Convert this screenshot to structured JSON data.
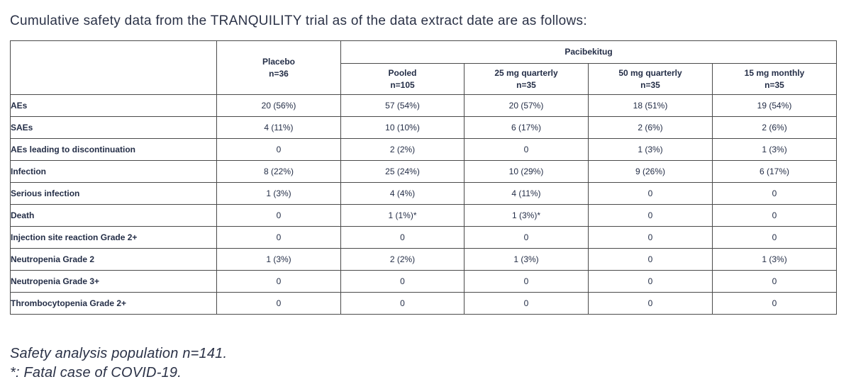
{
  "title": "Cumulative safety data from the TRANQUILITY trial as of the data extract date are as follows:",
  "table": {
    "group_header": "Pacibekitug",
    "columns": [
      {
        "label": "Placebo",
        "n": "n=36"
      },
      {
        "label": "Pooled",
        "n": "n=105"
      },
      {
        "label": "25 mg quarterly",
        "n": "n=35"
      },
      {
        "label": "50 mg quarterly",
        "n": "n=35"
      },
      {
        "label": "15 mg monthly",
        "n": "n=35"
      }
    ],
    "rows": [
      {
        "label": "AEs",
        "values": [
          "20 (56%)",
          "57 (54%)",
          "20 (57%)",
          "18 (51%)",
          "19 (54%)"
        ]
      },
      {
        "label": "SAEs",
        "values": [
          "4 (11%)",
          "10 (10%)",
          "6 (17%)",
          "2 (6%)",
          "2 (6%)"
        ]
      },
      {
        "label": "AEs leading to discontinuation",
        "values": [
          "0",
          "2 (2%)",
          "0",
          "1 (3%)",
          "1 (3%)"
        ]
      },
      {
        "label": "Infection",
        "values": [
          "8 (22%)",
          "25 (24%)",
          "10 (29%)",
          "9 (26%)",
          "6 (17%)"
        ]
      },
      {
        "label": "Serious infection",
        "values": [
          "1 (3%)",
          "4 (4%)",
          "4 (11%)",
          "0",
          "0"
        ]
      },
      {
        "label": "Death",
        "values": [
          "0",
          "1 (1%)*",
          "1 (3%)*",
          "0",
          "0"
        ]
      },
      {
        "label": "Injection site reaction Grade 2+",
        "values": [
          "0",
          "0",
          "0",
          "0",
          "0"
        ]
      },
      {
        "label": "Neutropenia Grade 2",
        "values": [
          "1 (3%)",
          "2 (2%)",
          "1 (3%)",
          "0",
          "1 (3%)"
        ]
      },
      {
        "label": "Neutropenia Grade 3+",
        "values": [
          "0",
          "0",
          "0",
          "0",
          "0"
        ]
      },
      {
        "label": "Thrombocytopenia Grade 2+",
        "values": [
          "0",
          "0",
          "0",
          "0",
          "0"
        ]
      }
    ]
  },
  "footnotes": [
    "Safety analysis population n=141.",
    "*: Fatal case of COVID-19."
  ],
  "colors": {
    "text": "#242e47",
    "border": "#4a4a4a",
    "background": "#ffffff"
  }
}
